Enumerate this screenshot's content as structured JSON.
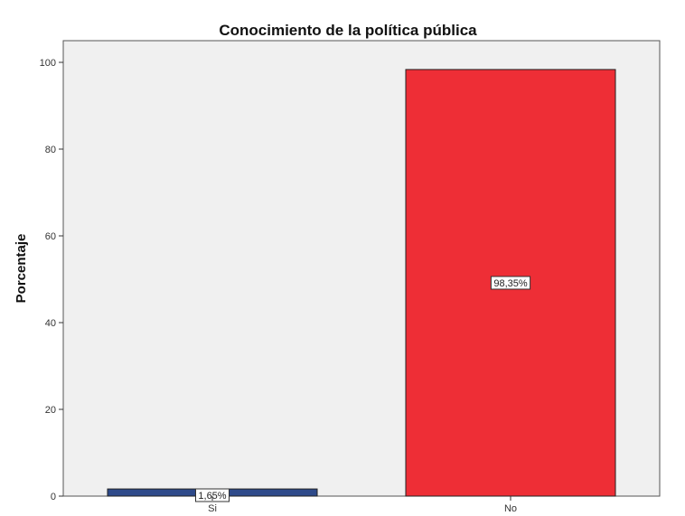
{
  "chart_data": {
    "type": "bar",
    "title": "Conocimiento de la política pública",
    "ylabel": "Porcentaje",
    "xlabel": "",
    "categories": [
      "Si",
      "No"
    ],
    "values": [
      1.65,
      98.35
    ],
    "data_labels": [
      "1,65%",
      "98,35%"
    ],
    "bar_colors": [
      "#2e4a8a",
      "#ee2e36"
    ],
    "yticks": [
      0,
      20,
      40,
      60,
      80,
      100
    ],
    "ylim": [
      0,
      105
    ],
    "grid": false,
    "legend": "none",
    "plot_background": "#f0f0f0"
  }
}
